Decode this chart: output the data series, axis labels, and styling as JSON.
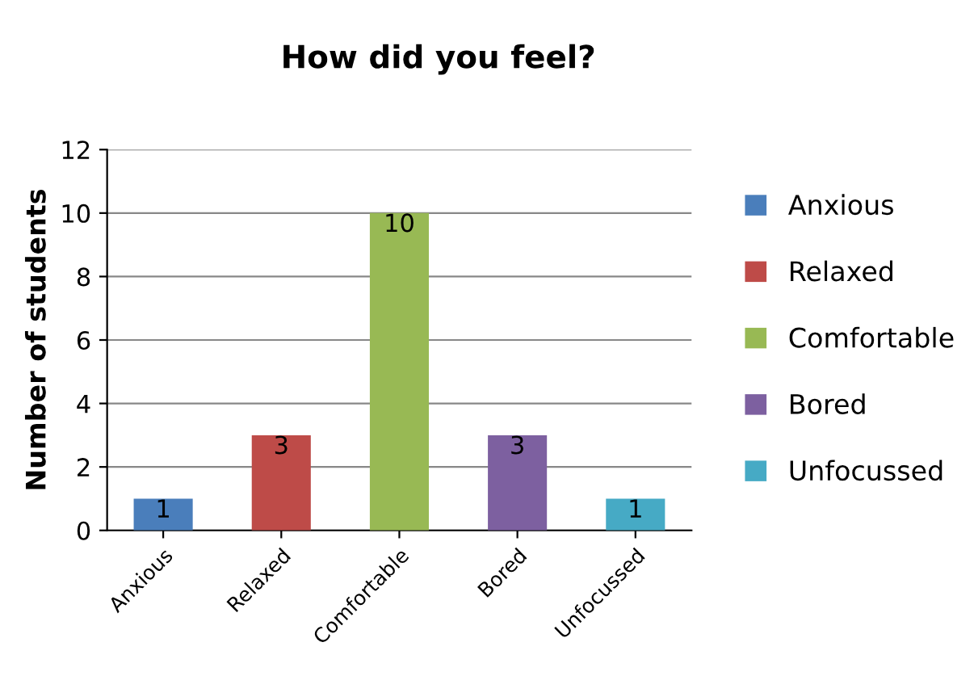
{
  "chart_data": {
    "type": "bar",
    "title": "How did you feel?",
    "ylabel": "Number of students",
    "categories": [
      "Anxious",
      "Relaxed",
      "Comfortable",
      "Bored",
      "Unfocussed"
    ],
    "series": [
      {
        "name": "Anxious",
        "color": "#4a7ebb",
        "values": [
          1,
          null,
          null,
          null,
          null
        ]
      },
      {
        "name": "Relaxed",
        "color": "#be4b48",
        "values": [
          null,
          3,
          null,
          null,
          null
        ]
      },
      {
        "name": "Comfortable",
        "color": "#98b954",
        "values": [
          null,
          null,
          10,
          null,
          null
        ]
      },
      {
        "name": "Bored",
        "color": "#7d60a0",
        "values": [
          null,
          null,
          null,
          3,
          null
        ]
      },
      {
        "name": "Unfocussed",
        "color": "#46aac5",
        "values": [
          null,
          null,
          null,
          null,
          1
        ]
      }
    ],
    "ylim": [
      0,
      12
    ],
    "yticks": [
      0,
      2,
      4,
      6,
      8,
      10,
      12
    ],
    "grid": "y",
    "legend": "right",
    "data_labels": true
  }
}
